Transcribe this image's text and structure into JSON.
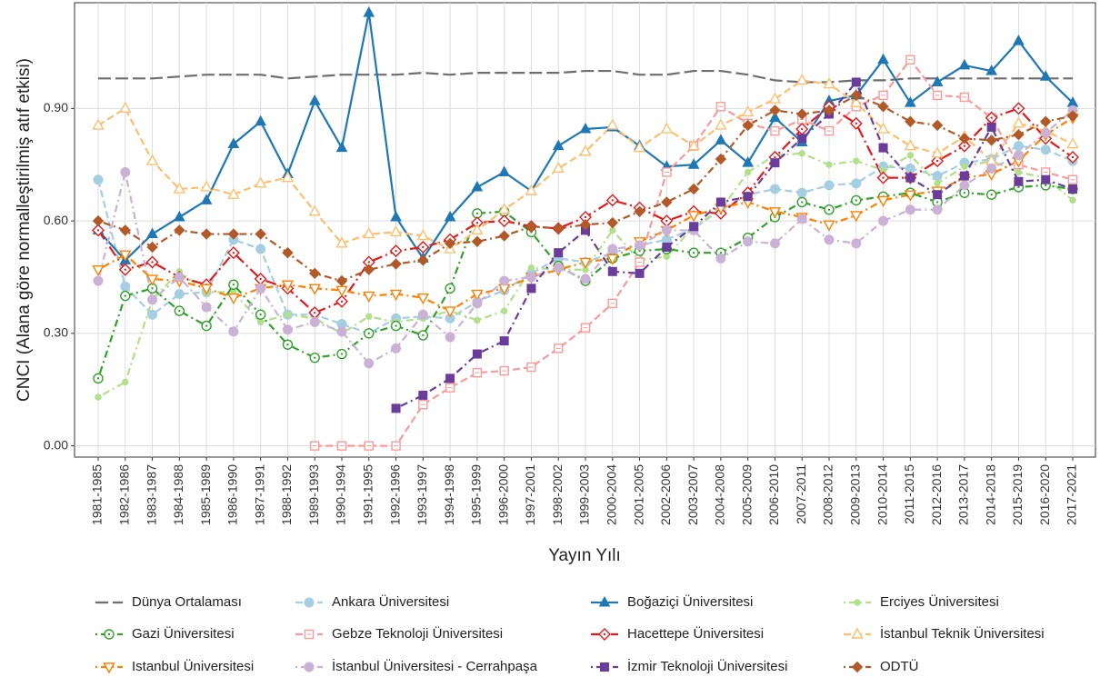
{
  "chart_data": {
    "type": "line",
    "x_label": "Yayın Yılı",
    "y_label": "CNCI (Alana göre normalleştirilmiş atıf etkisi)",
    "categories": [
      "1981-1985",
      "1982-1986",
      "1983-1987",
      "1984-1988",
      "1985-1989",
      "1986-1990",
      "1987-1991",
      "1988-1992",
      "1989-1993",
      "1990-1994",
      "1991-1995",
      "1992-1996",
      "1993-1997",
      "1994-1998",
      "1995-1999",
      "1996-2000",
      "1997-2001",
      "1998-2002",
      "1999-2003",
      "2000-2004",
      "2001-2005",
      "2002-2006",
      "2003-2007",
      "2004-2008",
      "2005-2009",
      "2006-2010",
      "2007-2011",
      "2008-2012",
      "2009-2013",
      "2010-2014",
      "2011-2015",
      "2012-2016",
      "2013-2017",
      "2014-2018",
      "2015-2019",
      "2016-2020",
      "2017-2021"
    ],
    "ylim": [
      -0.03,
      1.182
    ],
    "yticks": [
      {
        "value": 0,
        "label": "0.00"
      },
      {
        "value": 0.3,
        "label": "0.30"
      },
      {
        "value": 0.6,
        "label": "0.60"
      },
      {
        "value": 0.9,
        "label": "0.90"
      }
    ],
    "grid": true,
    "legend": "bottom",
    "series": [
      {
        "name": "Dünya Ortalaması",
        "color": "#6e6e6e",
        "dash": "longdash",
        "marker": "none",
        "values": [
          0.98,
          0.98,
          0.98,
          0.985,
          0.99,
          0.99,
          0.99,
          0.98,
          0.985,
          0.99,
          0.99,
          0.99,
          0.995,
          0.99,
          0.995,
          0.995,
          0.995,
          0.995,
          1.0,
          1.0,
          0.99,
          0.99,
          1.0,
          1.0,
          0.99,
          0.975,
          0.97,
          0.97,
          0.975,
          0.975,
          0.98,
          0.98,
          0.98,
          0.98,
          0.98,
          0.98,
          0.98
        ]
      },
      {
        "name": "Ankara Üniversitesi",
        "color": "#a6cee3",
        "dash": "dashed",
        "marker": "circle",
        "values": [
          0.71,
          0.425,
          0.35,
          0.405,
          0.41,
          0.55,
          0.525,
          0.35,
          0.35,
          0.325,
          0.3,
          0.34,
          0.345,
          0.34,
          0.385,
          0.415,
          0.46,
          0.5,
          0.49,
          0.515,
          0.535,
          0.55,
          0.58,
          0.63,
          0.67,
          0.685,
          0.675,
          0.695,
          0.7,
          0.745,
          0.74,
          0.72,
          0.755,
          0.765,
          0.8,
          0.79,
          0.76
        ]
      },
      {
        "name": "Boğaziçi Üniversitesi",
        "color": "#1f78b4",
        "dash": "solid",
        "marker": "triangle",
        "values": [
          0.575,
          0.495,
          0.565,
          0.61,
          0.655,
          0.805,
          0.865,
          0.725,
          0.92,
          0.795,
          1.155,
          0.61,
          0.5,
          0.61,
          0.69,
          0.73,
          0.68,
          0.8,
          0.845,
          0.85,
          0.8,
          0.745,
          0.75,
          0.815,
          0.755,
          0.875,
          0.81,
          0.92,
          0.935,
          1.03,
          0.915,
          0.97,
          1.015,
          1.0,
          1.08,
          0.985,
          0.915
        ]
      },
      {
        "name": "Erciyes Üniversitesi",
        "color": "#b2df8a",
        "dash": "dotdash",
        "marker": "circle-small",
        "values": [
          0.13,
          0.17,
          0.39,
          0.465,
          0.41,
          0.41,
          0.33,
          0.35,
          0.34,
          0.3,
          0.345,
          0.33,
          0.34,
          0.36,
          0.335,
          0.36,
          0.475,
          0.47,
          0.47,
          0.575,
          0.495,
          0.505,
          0.585,
          0.63,
          0.73,
          0.775,
          0.78,
          0.75,
          0.76,
          0.735,
          0.775,
          0.7,
          0.745,
          0.76,
          0.73,
          0.715,
          0.655
        ]
      },
      {
        "name": "Gazi Üniversitesi",
        "color": "#33a02c",
        "dash": "dotdash",
        "marker": "circle-open",
        "values": [
          0.18,
          0.4,
          0.42,
          0.36,
          0.32,
          0.43,
          0.35,
          0.27,
          0.235,
          0.245,
          0.3,
          0.32,
          0.295,
          0.42,
          0.62,
          0.625,
          0.57,
          0.48,
          0.44,
          0.5,
          0.52,
          0.525,
          0.515,
          0.515,
          0.555,
          0.61,
          0.65,
          0.63,
          0.655,
          0.665,
          0.675,
          0.65,
          0.675,
          0.67,
          0.69,
          0.695,
          0.685
        ]
      },
      {
        "name": "Gebze Teknoloji Üniversitesi",
        "color": "#fb9a99",
        "dash": "dashed",
        "marker": "square-open",
        "values": [
          null,
          null,
          null,
          null,
          null,
          null,
          null,
          null,
          0,
          0,
          0,
          0,
          0.11,
          0.155,
          0.195,
          0.2,
          0.21,
          0.26,
          0.315,
          0.38,
          0.49,
          0.73,
          0.8,
          0.905,
          0.86,
          0.84,
          0.87,
          0.84,
          0.905,
          0.935,
          1.03,
          0.935,
          0.93,
          0.875,
          0.75,
          0.73,
          0.71
        ]
      },
      {
        "name": "Hacettepe Üniversitesi",
        "color": "#e31a1c",
        "dash": "longdot",
        "marker": "diamond-open",
        "values": [
          0.575,
          0.47,
          0.49,
          0.45,
          0.43,
          0.515,
          0.445,
          0.42,
          0.355,
          0.385,
          0.49,
          0.52,
          0.53,
          0.55,
          0.595,
          0.6,
          0.585,
          0.58,
          0.61,
          0.655,
          0.635,
          0.6,
          0.625,
          0.62,
          0.675,
          0.77,
          0.845,
          0.905,
          0.86,
          0.715,
          0.715,
          0.76,
          0.8,
          0.875,
          0.9,
          0.82,
          0.77
        ]
      },
      {
        "name": "İstanbul Teknik Üniversitesi",
        "color": "#fdbf6f",
        "dash": "dashed",
        "marker": "triangle-open",
        "values": [
          0.855,
          0.9,
          0.76,
          0.685,
          0.69,
          0.67,
          0.7,
          0.715,
          0.625,
          0.54,
          0.565,
          0.57,
          0.56,
          0.525,
          0.575,
          0.63,
          0.68,
          0.74,
          0.785,
          0.855,
          0.795,
          0.845,
          0.8,
          0.855,
          0.89,
          0.925,
          0.975,
          0.965,
          0.915,
          0.845,
          0.8,
          0.78,
          0.825,
          0.76,
          0.86,
          0.84,
          0.805
        ]
      },
      {
        "name": "Istanbul Üniversitesi",
        "color": "#ff7f00",
        "dash": "dotdash",
        "marker": "triangle-down-open",
        "values": [
          0.47,
          0.51,
          0.445,
          0.44,
          0.42,
          0.395,
          0.42,
          0.43,
          0.42,
          0.415,
          0.4,
          0.405,
          0.395,
          0.36,
          0.405,
          0.42,
          0.45,
          0.47,
          0.49,
          0.5,
          0.545,
          0.575,
          0.615,
          0.635,
          0.65,
          0.625,
          0.61,
          0.59,
          0.615,
          0.655,
          0.67,
          0.68,
          0.715,
          0.725,
          0.76,
          0.83,
          0.875
        ]
      },
      {
        "name": "İstanbul Üniversitesi - Cerrahpaşa",
        "color": "#cab2d6",
        "dash": "dotdash",
        "marker": "circle",
        "values": [
          0.44,
          0.73,
          0.39,
          0.45,
          0.37,
          0.305,
          0.42,
          0.31,
          0.33,
          0.305,
          0.22,
          0.26,
          0.35,
          0.29,
          0.38,
          0.44,
          0.45,
          0.475,
          0.445,
          0.525,
          0.535,
          0.575,
          0.575,
          0.5,
          0.545,
          0.54,
          0.605,
          0.55,
          0.54,
          0.6,
          0.63,
          0.63,
          0.695,
          0.74,
          0.775,
          0.835,
          0.895
        ]
      },
      {
        "name": "İzmir Teknoloji Üniversitesi",
        "color": "#6a3d9a",
        "dash": "dotdash",
        "marker": "square",
        "values": [
          null,
          null,
          null,
          null,
          null,
          null,
          null,
          null,
          null,
          null,
          null,
          0.1,
          0.135,
          0.18,
          0.245,
          0.28,
          0.42,
          0.515,
          0.575,
          0.465,
          0.46,
          0.53,
          0.585,
          0.65,
          0.665,
          0.755,
          0.82,
          0.885,
          0.97,
          0.795,
          0.715,
          0.67,
          0.72,
          0.85,
          0.705,
          0.71,
          0.685
        ]
      },
      {
        "name": "ODTÜ",
        "color": "#b15928",
        "dash": "dotdash",
        "marker": "diamond",
        "values": [
          0.6,
          0.575,
          0.53,
          0.575,
          0.565,
          0.565,
          0.565,
          0.515,
          0.46,
          0.44,
          0.47,
          0.485,
          0.495,
          0.54,
          0.545,
          0.56,
          0.585,
          0.58,
          0.59,
          0.595,
          0.625,
          0.65,
          0.685,
          0.765,
          0.855,
          0.895,
          0.885,
          0.895,
          0.935,
          0.905,
          0.865,
          0.855,
          0.82,
          0.815,
          0.83,
          0.865,
          0.88
        ]
      }
    ]
  }
}
